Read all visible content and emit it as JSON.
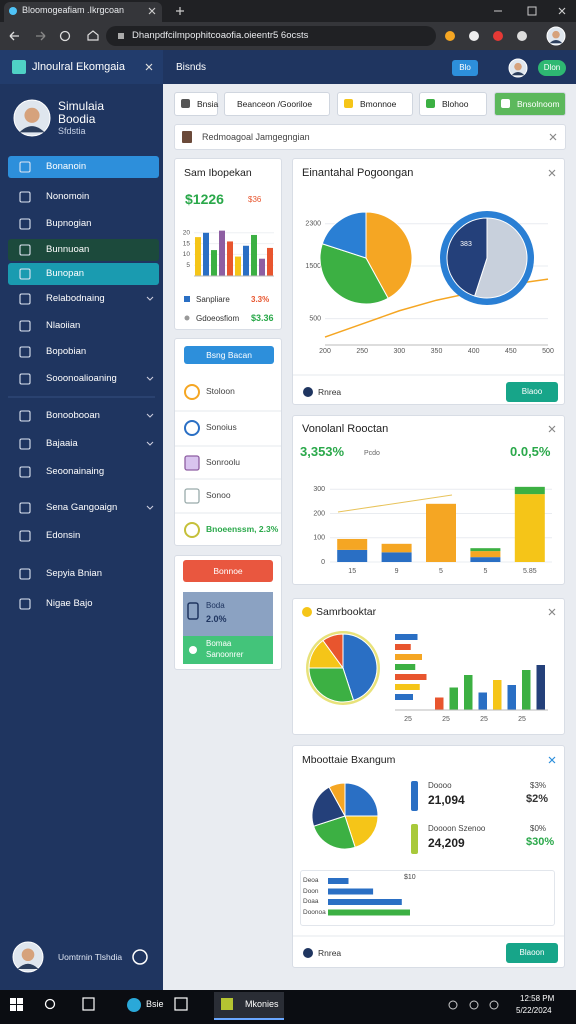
{
  "browser": {
    "tab_title": "Bloomogeafiam .Ikrgcoan",
    "url": "Dhanpdfcilmpophitcoaofia.oieentr5 6ocsts"
  },
  "sidebar": {
    "title": "Jlnoulral Ekomgaia",
    "profile": {
      "name": "Simulaia",
      "subtitle": "Boodia",
      "role": "Sfdstia"
    },
    "nav": [
      "Bonanoin",
      "Nonomoin",
      "Bupnogian",
      "Bunnuoan",
      "Bunopan",
      "Relabodnaing",
      "Nlaoiian",
      "Bopobian",
      "Sooonoalioaning",
      "Bonoobooan",
      "Bajaaia",
      "Seoonainaing",
      "Sena Gangoaign",
      "Edonsin",
      "Sepyia Bnian",
      "Nigae Bajo"
    ],
    "footer_user": "Uomtrnin Tlshdia"
  },
  "topbar": {
    "title": "Bisnds",
    "button_1": "Blo",
    "button_2": "Dlon"
  },
  "toolbar": [
    "Bnsia",
    "Beanceon /Gooriloe",
    "Bmonnoe",
    "Blohoo",
    "Bnsolnoom"
  ],
  "search": {
    "text": "Redmoagoal Jamgegngian"
  },
  "summary_card": {
    "title": "Sam Ibopekan",
    "value": "$1226",
    "badge": "$36",
    "chart": {
      "type": "bar",
      "ylim": [
        0,
        25
      ],
      "yticks": [
        5,
        10,
        15,
        20
      ],
      "values": [
        18,
        20,
        12,
        21,
        16,
        9,
        14,
        19,
        8,
        13
      ],
      "colors": [
        "#f5c518",
        "#2a6fc4",
        "#3cb043",
        "#8e5ea2",
        "#e8552e"
      ]
    },
    "legend": [
      {
        "label": "Sanpliare",
        "value": "3.3%"
      },
      {
        "label": "Gdoeosfiom",
        "value": "$3.36"
      }
    ]
  },
  "list_card": {
    "button": "Bsng Bacan",
    "items": [
      "Stoloon",
      "Sonoius",
      "Sonroolu",
      "Sonoo",
      "Bnoeenssm, 2.3%"
    ]
  },
  "status_card": {
    "button": "Bonnoe",
    "block_1": {
      "title": "Boda",
      "value": "2.0%"
    },
    "block_2": {
      "title": "Bomaa",
      "value": "Sanoonrer"
    }
  },
  "main_card": {
    "title": "Einantahal Pogoongan",
    "footer": "Rnrea",
    "button": "Blaoo",
    "chart": {
      "type": "line",
      "categories": [
        "200",
        "250",
        "300",
        "350",
        "400",
        "450",
        "500"
      ],
      "ylim": [
        0,
        2600
      ],
      "yticks": [
        500,
        1500,
        2300
      ],
      "series": [
        {
          "color": "#f5a623",
          "values": [
            150,
            400,
            650,
            850,
            1000,
            1150,
            1250
          ]
        }
      ],
      "pies": [
        {
          "values": [
            42,
            38,
            20
          ],
          "colors": [
            "#f5a623",
            "#3cb043",
            "#2a7fd4"
          ]
        },
        {
          "values": [
            55,
            45
          ],
          "colors": [
            "#c8d0dc",
            "#24407a"
          ],
          "center_label": "383"
        }
      ]
    }
  },
  "bar_card": {
    "title": "Vonolanl Rooctan",
    "value_1": "3,353%",
    "badge": "Pcdo",
    "value_2": "0.0,5%",
    "chart": {
      "type": "bar",
      "stacked": true,
      "categories": [
        "15",
        "9",
        "5",
        "5",
        "5.85"
      ],
      "ylim": [
        0,
        330
      ],
      "yticks": [
        0,
        100,
        200,
        300
      ],
      "series": [
        {
          "color": "#2a6fc4",
          "values": [
            50,
            40,
            0,
            20,
            0
          ]
        },
        {
          "color": "#f5a623",
          "values": [
            45,
            35,
            240,
            25,
            0
          ]
        },
        {
          "color": "#f5c518",
          "values": [
            0,
            0,
            0,
            0,
            280
          ]
        },
        {
          "color": "#3cb043",
          "values": [
            0,
            0,
            0,
            12,
            30
          ]
        }
      ]
    }
  },
  "split_card": {
    "title": "Samrbooktar",
    "pie": {
      "values": [
        45,
        30,
        15,
        10
      ],
      "colors": [
        "#2a6fc4",
        "#3cb043",
        "#f5c518",
        "#e8552e"
      ]
    },
    "hbars": {
      "xlim": [
        0,
        100
      ],
      "values": [
        50,
        35,
        60,
        45,
        70,
        55,
        40
      ],
      "colors": [
        "#2a6fc4",
        "#e8552e",
        "#f5a623",
        "#3cb043",
        "#e8552e",
        "#f5c518",
        "#2a6fc4"
      ]
    },
    "vbars": {
      "ylim": [
        0,
        100
      ],
      "values": [
        25,
        45,
        70,
        35,
        60,
        50,
        80,
        90
      ],
      "colors": [
        "#e8552e",
        "#3cb043",
        "#3cb043",
        "#2a6fc4",
        "#f5c518",
        "#2a6fc4",
        "#3cb043",
        "#24407a"
      ],
      "labels": [
        "25",
        "25",
        "25",
        "25"
      ]
    }
  },
  "detail_card": {
    "title": "Mboottaie Bxangum",
    "pie": {
      "values": [
        25,
        20,
        25,
        22,
        8
      ],
      "colors": [
        "#2a6fc4",
        "#f5c518",
        "#3cb043",
        "#24407a",
        "#f5a623"
      ]
    },
    "stats": [
      {
        "label": "Doooo",
        "value": "21,094",
        "change_label": "$3%",
        "change": "$2%"
      },
      {
        "label": "Doooon Szenoo",
        "value": "24,209",
        "change_label": "$0%",
        "change": "$30%"
      }
    ],
    "bars": {
      "max_label": "$10",
      "labels": [
        "Deoa",
        "Doon",
        "Doaa",
        "Doonoa"
      ],
      "xlim": [
        0,
        100
      ],
      "values": [
        25,
        55,
        90,
        100
      ],
      "colors": [
        "#2a6fc4",
        "#2a6fc4",
        "#2a6fc4",
        "#3cb043"
      ]
    },
    "footer": "Rnrea",
    "button": "Blaoon"
  },
  "taskbar": {
    "app_1": "Bsie",
    "app_2": "Mkonies",
    "time": "12:58 PM",
    "date": "5/22/2024"
  }
}
